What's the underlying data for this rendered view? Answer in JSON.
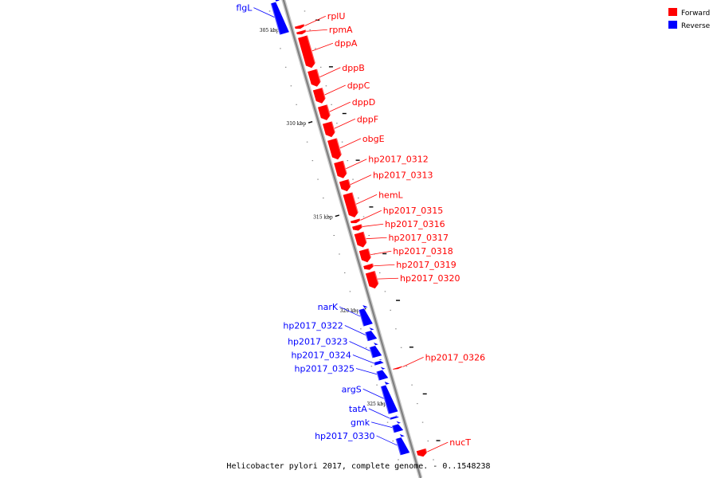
{
  "caption": "Helicobacter pylori 2017, complete genome. - 0..1548238",
  "legend": [
    {
      "label": "Forward",
      "color": "#ff0000"
    },
    {
      "label": "Reverse",
      "color": "#0000ff"
    }
  ],
  "colors": {
    "forward": "#ff0000",
    "reverse": "#0000ff",
    "backbone": "#808080"
  },
  "ticks": [
    {
      "label": "305 kbp",
      "kbp": 305
    },
    {
      "label": "310 kbp",
      "kbp": 310
    },
    {
      "label": "315 kbp",
      "kbp": 315
    },
    {
      "label": "320 kbp",
      "kbp": 320
    },
    {
      "label": "325 kbp",
      "kbp": 325
    }
  ],
  "genes": [
    {
      "name": "flgL",
      "strand": "reverse",
      "start": 303.2,
      "end": 305.1
    },
    {
      "name": "rplU",
      "strand": "forward",
      "start": 304.9,
      "end": 305.1
    },
    {
      "name": "rpmA",
      "strand": "forward",
      "start": 305.2,
      "end": 305.4
    },
    {
      "name": "dppA",
      "strand": "forward",
      "start": 305.5,
      "end": 307.2
    },
    {
      "name": "dppB",
      "strand": "forward",
      "start": 307.3,
      "end": 308.2
    },
    {
      "name": "dppC",
      "strand": "forward",
      "start": 308.3,
      "end": 309.1
    },
    {
      "name": "dppD",
      "strand": "forward",
      "start": 309.2,
      "end": 310.0
    },
    {
      "name": "dppF",
      "strand": "forward",
      "start": 310.1,
      "end": 310.9
    },
    {
      "name": "obgE",
      "strand": "forward",
      "start": 311.0,
      "end": 312.1
    },
    {
      "name": "hp2017_0312",
      "strand": "forward",
      "start": 312.2,
      "end": 313.1
    },
    {
      "name": "hp2017_0313",
      "strand": "forward",
      "start": 313.2,
      "end": 313.8
    },
    {
      "name": "hemL",
      "strand": "forward",
      "start": 313.9,
      "end": 315.2
    },
    {
      "name": "hp2017_0315",
      "strand": "forward",
      "start": 315.3,
      "end": 315.5
    },
    {
      "name": "hp2017_0316",
      "strand": "forward",
      "start": 315.6,
      "end": 315.9
    },
    {
      "name": "hp2017_0317",
      "strand": "forward",
      "start": 316.0,
      "end": 316.8
    },
    {
      "name": "hp2017_0318",
      "strand": "forward",
      "start": 316.9,
      "end": 317.6
    },
    {
      "name": "hp2017_0319",
      "strand": "forward",
      "start": 317.7,
      "end": 318.0
    },
    {
      "name": "hp2017_0320",
      "strand": "forward",
      "start": 318.1,
      "end": 319.0
    },
    {
      "name": "narK",
      "strand": "reverse",
      "start": 319.6,
      "end": 320.7
    },
    {
      "name": "hp2017_0322",
      "strand": "reverse",
      "start": 320.8,
      "end": 321.5
    },
    {
      "name": "hp2017_0323",
      "strand": "reverse",
      "start": 321.6,
      "end": 322.4
    },
    {
      "name": "hp2017_0324",
      "strand": "reverse",
      "start": 322.5,
      "end": 322.8
    },
    {
      "name": "hp2017_0325",
      "strand": "reverse",
      "start": 322.9,
      "end": 323.6
    },
    {
      "name": "hp2017_0326",
      "strand": "forward",
      "start": 323.2,
      "end": 323.3
    },
    {
      "name": "argS",
      "strand": "reverse",
      "start": 323.7,
      "end": 325.4
    },
    {
      "name": "tatA",
      "strand": "reverse",
      "start": 325.5,
      "end": 325.7
    },
    {
      "name": "gmk",
      "strand": "reverse",
      "start": 325.8,
      "end": 326.4
    },
    {
      "name": "hp2017_0330",
      "strand": "reverse",
      "start": 326.5,
      "end": 327.6
    },
    {
      "name": "nucT",
      "strand": "forward",
      "start": 327.6,
      "end": 328.0
    }
  ]
}
